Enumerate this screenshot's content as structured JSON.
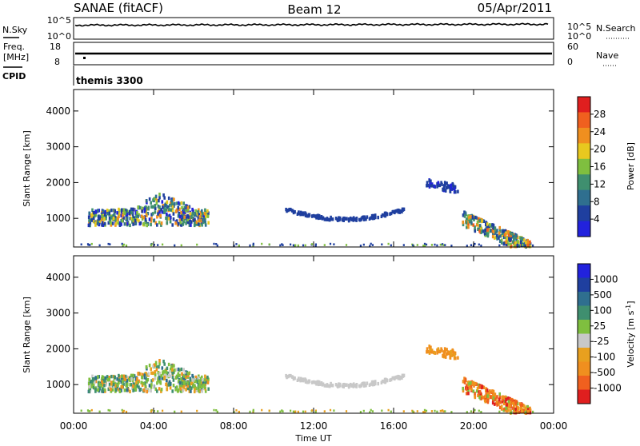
{
  "header": {
    "station": "SANAE (fitACF)",
    "beam": "Beam 12",
    "date": "05/Apr/2011"
  },
  "sky_panel": {
    "left_label": "N.Sky",
    "left_ticks": [
      "10^5",
      "10^0"
    ],
    "right_ticks": [
      "10^5",
      "10^0"
    ],
    "right_label": "N.Search"
  },
  "freq_panel": {
    "left_label_1": "Freq.",
    "left_label_2": "[MHz]",
    "left_ticks": [
      "18",
      "8"
    ],
    "right_ticks": [
      "60",
      "0"
    ],
    "right_label": "Nave"
  },
  "cpid_panel": {
    "label": "CPID",
    "mode": "themis 3300"
  },
  "colors": {
    "power": [
      "#2222dd",
      "#1f3f9f",
      "#2f6f8f",
      "#3f8f6f",
      "#7fbf3f",
      "#e8c81f",
      "#f08f1f",
      "#f0601f",
      "#e01f1f"
    ],
    "velocity": [
      "#2222dd",
      "#1f3f9f",
      "#2f6f8f",
      "#3f8f6f",
      "#7fbf3f",
      "#c8c8c8",
      "#e8a01f",
      "#f08f1f",
      "#f0601f",
      "#e01f1f"
    ],
    "trace": "#000000"
  },
  "chart_data": [
    {
      "type": "heatmap",
      "name": "power",
      "xlabel": "",
      "ylabel": "Slant Range [km]",
      "yticks": [
        "1000",
        "2000",
        "3000",
        "4000"
      ],
      "ylim": [
        200,
        4600
      ],
      "xlim": [
        0,
        24
      ],
      "colorbar": {
        "label": "Power [dB]",
        "ticks": [
          "4",
          "8",
          "12",
          "16",
          "20",
          "24",
          "28"
        ],
        "range": [
          0,
          32
        ]
      },
      "echo_regions": [
        {
          "t_start": 0.7,
          "t_end": 6.7,
          "range_lo": 800,
          "range_hi": 1800,
          "value": "5-20"
        },
        {
          "t_start": 10.5,
          "t_end": 16.6,
          "range_lo": 950,
          "range_hi": 1350,
          "value": "3-6"
        },
        {
          "t_start": 17.6,
          "t_end": 19.2,
          "range_lo": 1600,
          "range_hi": 2150,
          "value": "3-8"
        },
        {
          "t_start": 19.4,
          "t_end": 22.8,
          "range_lo": 250,
          "range_hi": 1200,
          "value": "4-26"
        }
      ]
    },
    {
      "type": "heatmap",
      "name": "velocity",
      "xlabel": "Time UT",
      "ylabel": "Slant Range [km]",
      "yticks": [
        "1000",
        "2000",
        "3000",
        "4000"
      ],
      "ylim": [
        200,
        4600
      ],
      "xlim": [
        0,
        24
      ],
      "xticks": [
        "00:00",
        "04:00",
        "08:00",
        "12:00",
        "16:00",
        "20:00",
        "00:00"
      ],
      "colorbar": {
        "label": "Velocity [m s^-1]",
        "ticks": [
          "1000",
          "500",
          "100",
          "25",
          "-25",
          "-100",
          "-500",
          "-1000"
        ]
      },
      "echo_regions": [
        {
          "t_start": 0.7,
          "t_end": 6.7,
          "range_lo": 800,
          "range_hi": 1800,
          "value": "-500 to 500"
        },
        {
          "t_start": 10.5,
          "t_end": 16.6,
          "range_lo": 950,
          "range_hi": 1350,
          "value": "-25 to 25"
        },
        {
          "t_start": 17.6,
          "t_end": 19.2,
          "range_lo": 1600,
          "range_hi": 2150,
          "value": "-100 to -500"
        },
        {
          "t_start": 19.4,
          "t_end": 22.8,
          "range_lo": 250,
          "range_hi": 1200,
          "value": "-100 to -1000"
        }
      ]
    }
  ]
}
